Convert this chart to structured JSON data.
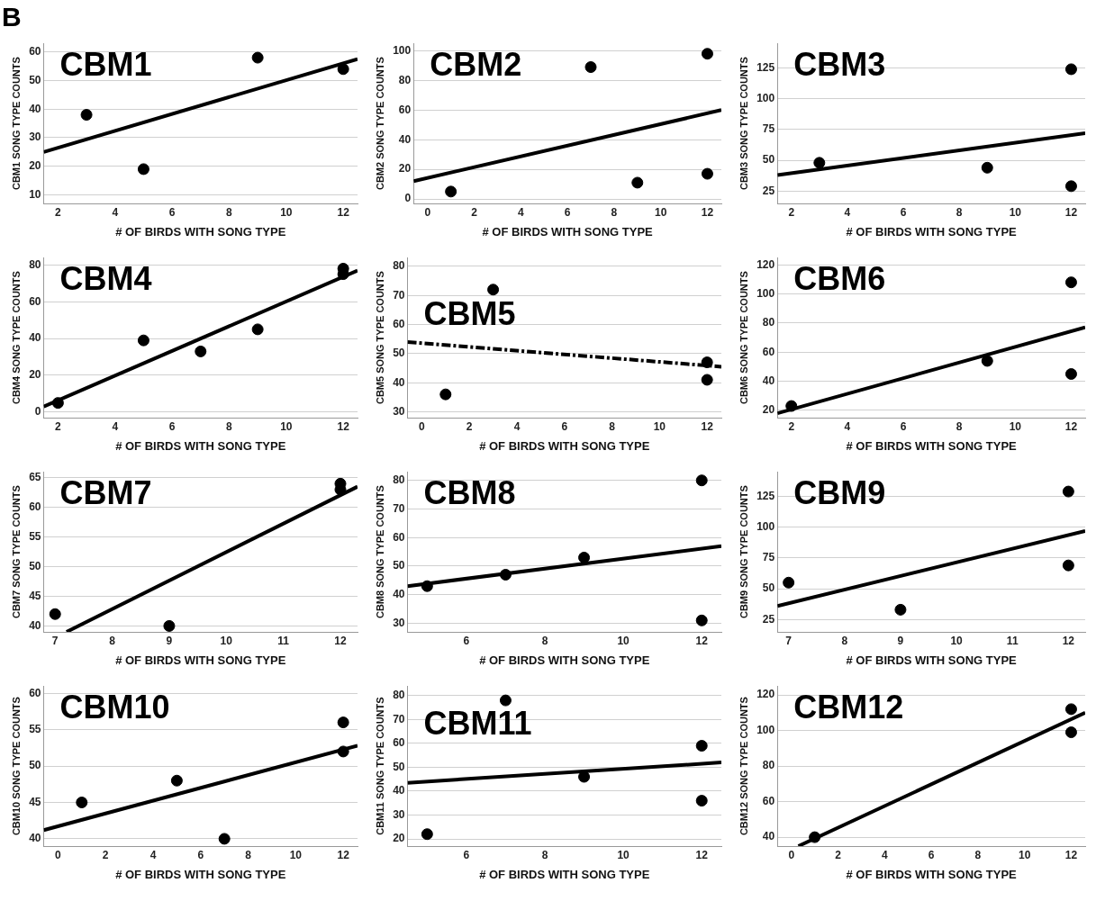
{
  "chart_data": [
    {
      "type": "scatter",
      "title": "B",
      "annotations": [
        "CBM1"
      ],
      "xlabel": "# OF BIRDS WITH SONG TYPE",
      "ylabel": "CBM1 SONG TYPE COUNTS",
      "xlim": [
        1.5,
        12.5
      ],
      "xticks": [
        2,
        4,
        6,
        8,
        10,
        12
      ],
      "ylim": [
        7,
        63
      ],
      "yticks": [
        10,
        20,
        30,
        40,
        50,
        60
      ],
      "grid": "y",
      "marker": "circle",
      "series": [
        {
          "color": "#000000",
          "x": [
            3,
            5,
            9,
            12
          ],
          "values": [
            38,
            19,
            58,
            54
          ]
        },
        {
          "type": "line",
          "color": "#000000",
          "marker": "none",
          "line_style": "solid",
          "x": [
            1.5,
            12.5
          ],
          "values": [
            25,
            57.5
          ]
        }
      ]
    },
    {
      "type": "scatter",
      "annotations": [
        "CBM2"
      ],
      "xlabel": "# OF BIRDS WITH SONG TYPE",
      "ylabel": "CBM2 SONG TYPE COUNTS",
      "xlim": [
        -0.6,
        12.6
      ],
      "xticks": [
        0,
        2,
        4,
        6,
        8,
        10,
        12
      ],
      "ylim": [
        -3,
        105
      ],
      "yticks": [
        0,
        20,
        40,
        60,
        80,
        100
      ],
      "grid": "y",
      "marker": "circle",
      "series": [
        {
          "color": "#000000",
          "x": [
            1,
            7,
            9,
            12,
            12
          ],
          "values": [
            5,
            89,
            11,
            98,
            17
          ]
        },
        {
          "type": "line",
          "color": "#000000",
          "marker": "none",
          "line_style": "solid",
          "x": [
            -0.6,
            12.6
          ],
          "values": [
            12,
            60
          ]
        }
      ]
    },
    {
      "type": "scatter",
      "annotations": [
        "CBM3"
      ],
      "xlabel": "# OF BIRDS WITH SONG TYPE",
      "ylabel": "CBM3 SONG TYPE COUNTS",
      "xlim": [
        1.5,
        12.5
      ],
      "xticks": [
        2,
        4,
        6,
        8,
        10,
        12
      ],
      "ylim": [
        15,
        145
      ],
      "yticks": [
        25,
        50,
        75,
        100,
        125
      ],
      "grid": "y",
      "marker": "circle",
      "series": [
        {
          "color": "#000000",
          "x": [
            3,
            9,
            12,
            12
          ],
          "values": [
            48,
            44,
            124,
            29
          ]
        },
        {
          "type": "line",
          "color": "#000000",
          "marker": "none",
          "line_style": "solid",
          "x": [
            1.5,
            12.5
          ],
          "values": [
            38,
            72
          ]
        }
      ]
    },
    {
      "type": "scatter",
      "annotations": [
        "CBM4"
      ],
      "xlabel": "# OF BIRDS WITH SONG TYPE",
      "ylabel": "CBM4 SONG TYPE COUNTS",
      "xlim": [
        1.5,
        12.5
      ],
      "xticks": [
        2,
        4,
        6,
        8,
        10,
        12
      ],
      "ylim": [
        -3,
        84
      ],
      "yticks": [
        0,
        20,
        40,
        60,
        80
      ],
      "grid": "y",
      "marker": "circle",
      "series": [
        {
          "color": "#000000",
          "x": [
            2,
            5,
            7,
            9,
            12,
            12
          ],
          "values": [
            5,
            39,
            33,
            45,
            78,
            75
          ]
        },
        {
          "type": "line",
          "color": "#000000",
          "marker": "none",
          "line_style": "solid",
          "x": [
            1.5,
            12.5
          ],
          "values": [
            3,
            77
          ]
        }
      ]
    },
    {
      "type": "scatter",
      "annotations": [
        "CBM5"
      ],
      "xlabel": "# OF BIRDS WITH SONG TYPE",
      "ylabel": "CBM5 SONG TYPE COUNTS",
      "xlim": [
        -0.6,
        12.6
      ],
      "xticks": [
        0,
        2,
        4,
        6,
        8,
        10,
        12
      ],
      "ylim": [
        28,
        83
      ],
      "yticks": [
        30,
        40,
        50,
        60,
        70,
        80
      ],
      "grid": "y",
      "marker": "circle",
      "series": [
        {
          "color": "#000000",
          "x": [
            1,
            3,
            12,
            12
          ],
          "values": [
            36,
            72,
            47,
            41
          ]
        },
        {
          "type": "line",
          "color": "#000000",
          "marker": "none",
          "line_style": "dashed",
          "x": [
            -0.6,
            12.6
          ],
          "values": [
            54,
            45.5
          ]
        }
      ]
    },
    {
      "type": "scatter",
      "annotations": [
        "CBM6"
      ],
      "xlabel": "# OF BIRDS WITH SONG TYPE",
      "ylabel": "CBM6 SONG TYPE COUNTS",
      "xlim": [
        1.5,
        12.5
      ],
      "xticks": [
        2,
        4,
        6,
        8,
        10,
        12
      ],
      "ylim": [
        15,
        125
      ],
      "yticks": [
        20,
        40,
        60,
        80,
        100,
        120
      ],
      "grid": "y",
      "marker": "circle",
      "series": [
        {
          "color": "#000000",
          "x": [
            2,
            9,
            12,
            12
          ],
          "values": [
            23,
            54,
            108,
            45
          ]
        },
        {
          "type": "line",
          "color": "#000000",
          "marker": "none",
          "line_style": "solid",
          "x": [
            1.5,
            12.5
          ],
          "values": [
            18,
            77
          ]
        }
      ]
    },
    {
      "type": "scatter",
      "annotations": [
        "CBM7"
      ],
      "xlabel": "# OF BIRDS WITH SONG TYPE",
      "ylabel": "CBM7 SONG TYPE COUNTS",
      "xlim": [
        6.8,
        12.3
      ],
      "xticks": [
        7,
        8,
        9,
        10,
        11,
        12
      ],
      "ylim": [
        39,
        66
      ],
      "yticks": [
        40,
        45,
        50,
        55,
        60,
        65
      ],
      "grid": "y",
      "marker": "circle",
      "series": [
        {
          "color": "#000000",
          "x": [
            7,
            9,
            12,
            12
          ],
          "values": [
            42,
            40,
            64,
            63
          ]
        },
        {
          "type": "line",
          "color": "#000000",
          "marker": "none",
          "line_style": "solid",
          "x": [
            7.2,
            12.3
          ],
          "values": [
            39,
            63.5
          ]
        }
      ]
    },
    {
      "type": "scatter",
      "annotations": [
        "CBM8"
      ],
      "xlabel": "# OF BIRDS WITH SONG TYPE",
      "ylabel": "CBM8 SONG TYPE COUNTS",
      "xlim": [
        4.5,
        12.5
      ],
      "xticks": [
        6,
        8,
        10,
        12
      ],
      "ylim": [
        27,
        83
      ],
      "yticks": [
        30,
        40,
        50,
        60,
        70,
        80
      ],
      "grid": "y",
      "marker": "circle",
      "series": [
        {
          "color": "#000000",
          "x": [
            5,
            7,
            9,
            12,
            12
          ],
          "values": [
            43,
            47,
            53,
            80,
            31
          ]
        },
        {
          "type": "line",
          "color": "#000000",
          "marker": "none",
          "line_style": "solid",
          "x": [
            4.5,
            12.5
          ],
          "values": [
            43,
            57
          ]
        }
      ]
    },
    {
      "type": "scatter",
      "annotations": [
        "CBM9"
      ],
      "xlabel": "# OF BIRDS WITH SONG TYPE",
      "ylabel": "CBM9 SONG TYPE COUNTS",
      "xlim": [
        6.8,
        12.3
      ],
      "xticks": [
        7,
        8,
        9,
        10,
        11,
        12
      ],
      "ylim": [
        15,
        145
      ],
      "yticks": [
        25,
        50,
        75,
        100,
        125
      ],
      "grid": "y",
      "marker": "circle",
      "series": [
        {
          "color": "#000000",
          "x": [
            7,
            9,
            12,
            12
          ],
          "values": [
            55,
            33,
            129,
            69
          ]
        },
        {
          "type": "line",
          "color": "#000000",
          "marker": "none",
          "line_style": "solid",
          "x": [
            6.8,
            12.3
          ],
          "values": [
            36,
            97
          ]
        }
      ]
    },
    {
      "type": "scatter",
      "annotations": [
        "CBM10"
      ],
      "xlabel": "# OF BIRDS WITH SONG TYPE",
      "ylabel": "CBM10 SONG TYPE COUNTS",
      "xlim": [
        -0.6,
        12.6
      ],
      "xticks": [
        0,
        2,
        4,
        6,
        8,
        10,
        12
      ],
      "ylim": [
        39,
        61
      ],
      "yticks": [
        40,
        45,
        50,
        55,
        60
      ],
      "grid": "y",
      "marker": "circle",
      "series": [
        {
          "color": "#000000",
          "x": [
            1,
            5,
            7,
            12,
            12
          ],
          "values": [
            45,
            48,
            40,
            56,
            52
          ]
        },
        {
          "type": "line",
          "color": "#000000",
          "marker": "none",
          "line_style": "solid",
          "x": [
            -0.6,
            12.6
          ],
          "values": [
            41.2,
            52.8
          ]
        }
      ]
    },
    {
      "type": "scatter",
      "annotations": [
        "CBM11"
      ],
      "xlabel": "# OF BIRDS WITH SONG TYPE",
      "ylabel": "CBM11 SONG TYPE COUNTS",
      "xlim": [
        4.5,
        12.5
      ],
      "xticks": [
        6,
        8,
        10,
        12
      ],
      "ylim": [
        17,
        84
      ],
      "yticks": [
        20,
        30,
        40,
        50,
        60,
        70,
        80
      ],
      "grid": "y",
      "marker": "circle",
      "series": [
        {
          "color": "#000000",
          "x": [
            5,
            7,
            9,
            12,
            12
          ],
          "values": [
            22,
            78,
            46,
            59,
            36
          ]
        },
        {
          "type": "line",
          "color": "#000000",
          "marker": "none",
          "line_style": "solid",
          "x": [
            4.5,
            12.5
          ],
          "values": [
            43.5,
            52
          ]
        }
      ]
    },
    {
      "type": "scatter",
      "annotations": [
        "CBM12"
      ],
      "xlabel": "# OF BIRDS WITH SONG TYPE",
      "ylabel": "CBM12 SONG TYPE COUNTS",
      "xlim": [
        -0.6,
        12.6
      ],
      "xticks": [
        0,
        2,
        4,
        6,
        8,
        10,
        12
      ],
      "ylim": [
        35,
        125
      ],
      "yticks": [
        40,
        60,
        80,
        100,
        120
      ],
      "grid": "y",
      "marker": "circle",
      "series": [
        {
          "color": "#000000",
          "x": [
            1,
            12,
            12
          ],
          "values": [
            40,
            112,
            99
          ]
        },
        {
          "type": "line",
          "color": "#000000",
          "marker": "none",
          "line_style": "solid",
          "x": [
            0.3,
            12.6
          ],
          "values": [
            35,
            110
          ]
        }
      ]
    }
  ]
}
